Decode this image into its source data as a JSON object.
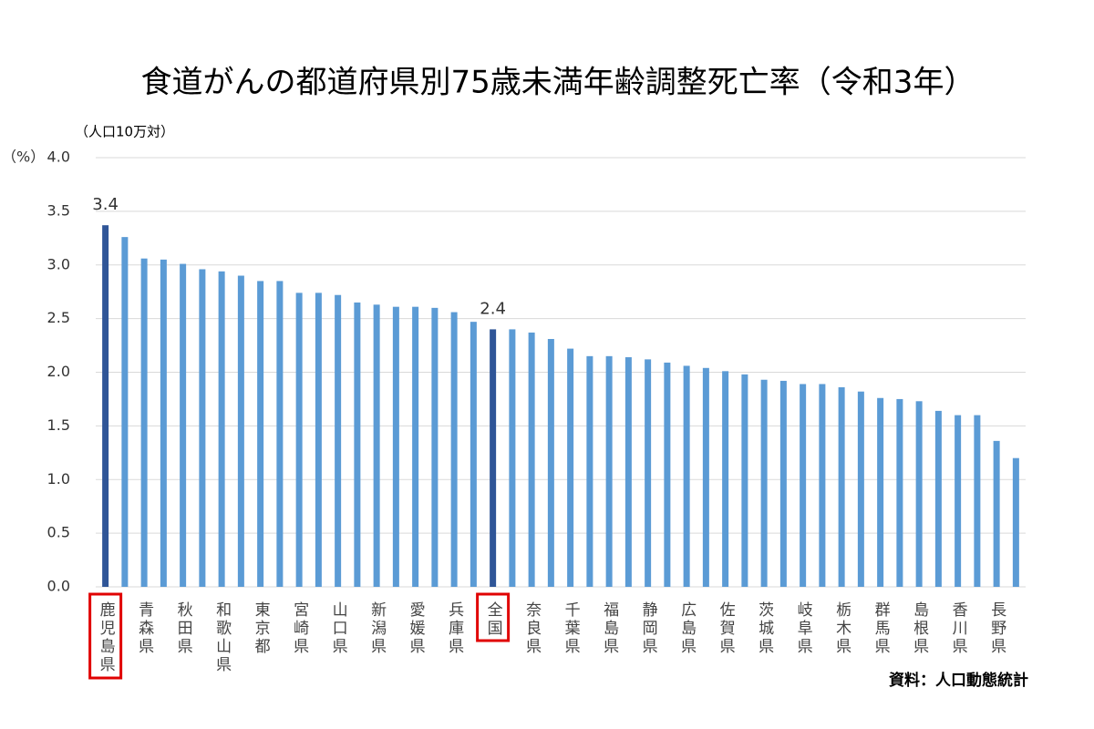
{
  "chart_data": {
    "type": "bar",
    "title": "食道がんの都道府県別75歳未満年齢調整死亡率（令和3年）",
    "subtitle": "（人口10万対）",
    "y_label": "（%）",
    "source": "資料：人口動態統計",
    "categories": [
      "鹿児島県",
      null,
      "青森県",
      null,
      "秋田県",
      null,
      "和歌山県",
      null,
      "東京都",
      null,
      "宮崎県",
      null,
      "山口県",
      null,
      "新潟県",
      null,
      "愛媛県",
      null,
      "兵庫県",
      null,
      "全国",
      null,
      "奈良県",
      null,
      "千葉県",
      null,
      "福島県",
      null,
      "静岡県",
      null,
      "広島県",
      null,
      "佐賀県",
      null,
      "茨城県",
      null,
      "岐阜県",
      null,
      "栃木県",
      null,
      "群馬県",
      null,
      "島根県",
      null,
      "香川県",
      null,
      "長野県",
      null
    ],
    "values": [
      3.37,
      3.26,
      3.06,
      3.05,
      3.01,
      2.96,
      2.94,
      2.9,
      2.85,
      2.85,
      2.74,
      2.74,
      2.72,
      2.65,
      2.63,
      2.61,
      2.61,
      2.6,
      2.56,
      2.47,
      2.4,
      2.4,
      2.37,
      2.31,
      2.22,
      2.15,
      2.15,
      2.14,
      2.12,
      2.09,
      2.06,
      2.04,
      2.01,
      1.98,
      1.93,
      1.92,
      1.89,
      1.89,
      1.86,
      1.82,
      1.76,
      1.75,
      1.73,
      1.64,
      1.6,
      1.6,
      1.36,
      1.2
    ],
    "value_labels": [
      "3.4",
      null,
      null,
      null,
      null,
      null,
      null,
      null,
      null,
      null,
      null,
      null,
      null,
      null,
      null,
      null,
      null,
      null,
      null,
      null,
      "2.4",
      null,
      null,
      null,
      null,
      null,
      null,
      null,
      null,
      null,
      null,
      null,
      null,
      null,
      null,
      null,
      null,
      null,
      null,
      null,
      null,
      null,
      null,
      null,
      null,
      null,
      null,
      null
    ],
    "color": "#5b9bd5",
    "highlight": {
      "categories": [
        "鹿児島県",
        "全国"
      ],
      "color": "#2f5597",
      "box_color": "#e00000"
    },
    "ylim": [
      0,
      4
    ],
    "yticks": [
      {
        "value": 0,
        "label": "0.0"
      },
      {
        "value": 0.5,
        "label": "0.5"
      },
      {
        "value": 1,
        "label": "1.0"
      },
      {
        "value": 1.5,
        "label": "1.5"
      },
      {
        "value": 2,
        "label": "2.0"
      },
      {
        "value": 2.5,
        "label": "2.5"
      },
      {
        "value": 3,
        "label": "3.0"
      },
      {
        "value": 3.5,
        "label": "3.5"
      },
      {
        "value": 4,
        "label": "4.0"
      }
    ],
    "grid": true
  }
}
